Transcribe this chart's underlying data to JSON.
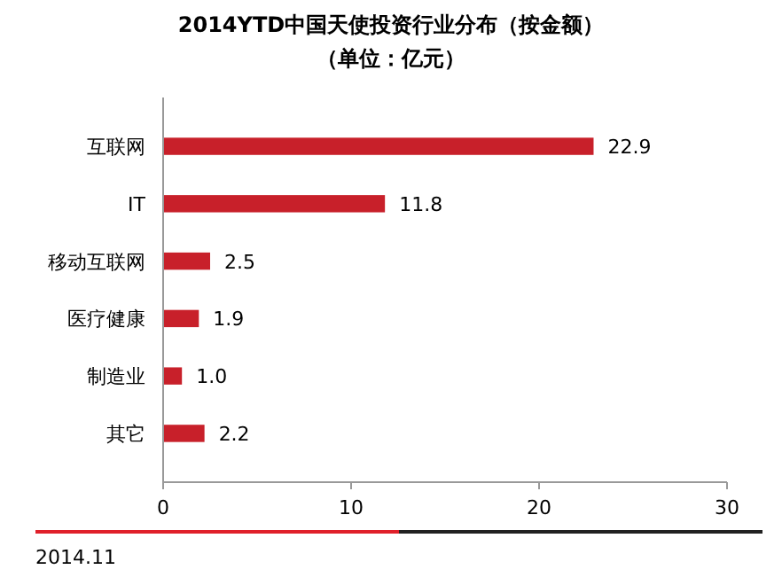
{
  "chart_data": {
    "type": "bar",
    "orientation": "horizontal",
    "title": "2014YTD中国天使投资行业分布（按金额）",
    "subtitle": "（单位：亿元）",
    "categories": [
      "互联网",
      "IT",
      "移动互联网",
      "医疗健康",
      "制造业",
      "其它"
    ],
    "values": [
      22.9,
      11.8,
      2.5,
      1.9,
      1.0,
      2.2
    ],
    "value_labels": [
      "22.9",
      "11.8",
      "2.5",
      "1.9",
      "1.0",
      "2.2"
    ],
    "color": "#c8202a",
    "xlim": [
      0,
      30
    ],
    "xticks": [
      0,
      10,
      20,
      30
    ],
    "grid": false,
    "annotations": [
      "2014.11"
    ]
  }
}
